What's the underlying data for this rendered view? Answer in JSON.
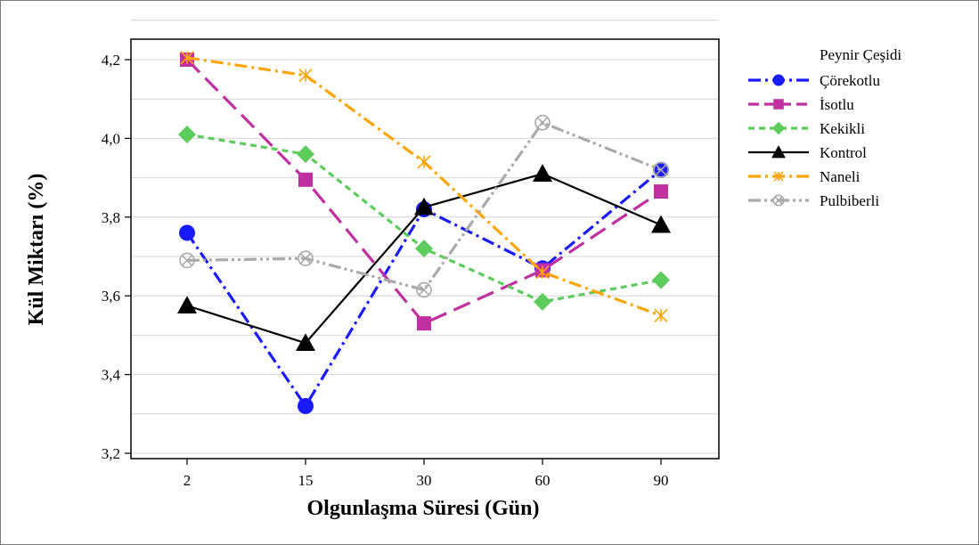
{
  "chart_data": {
    "type": "line",
    "xlabel": "Olgunlaşma Süresi (Gün)",
    "ylabel": "Kül Miktarı (%)",
    "categories": [
      "2",
      "15",
      "30",
      "60",
      "90"
    ],
    "y_ticks": [
      "3,2",
      "3,4",
      "3,6",
      "3,8",
      "4,0",
      "4,2"
    ],
    "y_tick_values": [
      3.2,
      3.4,
      3.6,
      3.8,
      4.0,
      4.2
    ],
    "ylim": [
      3.2,
      4.3
    ],
    "grid": "horizontal",
    "legend_title": "Peynir Çeşidi",
    "legend_position": "right",
    "series": [
      {
        "name": "Çörekotlu",
        "values": [
          3.76,
          3.32,
          3.82,
          3.67,
          3.92
        ],
        "color": "#1a1aff",
        "marker": "circle",
        "dash": "dash-dot"
      },
      {
        "name": "İsotlu",
        "values": [
          4.2,
          3.895,
          3.53,
          3.665,
          3.865
        ],
        "color": "#c030a0",
        "marker": "square",
        "dash": "long-dash"
      },
      {
        "name": "Kekikli",
        "values": [
          4.01,
          3.96,
          3.72,
          3.585,
          3.64
        ],
        "color": "#5ccc5c",
        "marker": "diamond",
        "dash": "short-dash"
      },
      {
        "name": "Kontrol",
        "values": [
          3.575,
          3.48,
          3.825,
          3.91,
          3.78
        ],
        "color": "#000000",
        "marker": "triangle",
        "dash": "solid"
      },
      {
        "name": "Naneli",
        "values": [
          4.205,
          4.16,
          3.94,
          3.66,
          3.55
        ],
        "color": "#ffa500",
        "marker": "asterisk",
        "dash": "dash-dot"
      },
      {
        "name": "Pulbiberli",
        "values": [
          3.69,
          3.695,
          3.615,
          4.04,
          3.92
        ],
        "color": "#aaaaaa",
        "marker": "circle-x",
        "dash": "dash-dot-dot"
      }
    ]
  }
}
